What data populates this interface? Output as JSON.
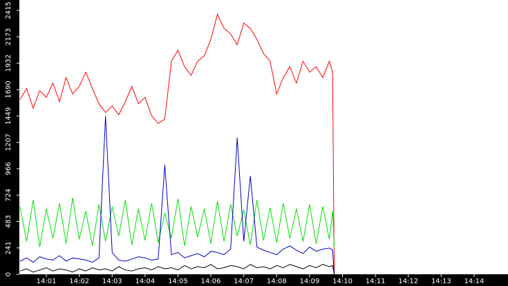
{
  "chart_data": {
    "type": "line",
    "x": [
      0.2,
      0.4,
      0.6,
      0.8,
      1.0,
      1.2,
      1.4,
      1.6,
      1.8,
      2.0,
      2.2,
      2.4,
      2.6,
      2.8,
      3.0,
      3.2,
      3.4,
      3.6,
      3.8,
      4.0,
      4.2,
      4.4,
      4.6,
      4.8,
      5.0,
      5.2,
      5.4,
      5.6,
      5.8,
      6.0,
      6.2,
      6.4,
      6.6,
      6.8,
      7.0,
      7.2,
      7.4,
      7.6,
      7.8,
      8.0,
      8.2,
      8.4,
      8.6,
      8.8,
      9.0,
      9.2,
      9.4,
      9.6,
      9.7,
      9.75
    ],
    "series": [
      {
        "color": "#ff0000",
        "values": [
          1600,
          1700,
          1520,
          1680,
          1620,
          1750,
          1580,
          1800,
          1650,
          1720,
          1850,
          1700,
          1560,
          1480,
          1540,
          1460,
          1580,
          1720,
          1560,
          1620,
          1450,
          1380,
          1420,
          1950,
          2050,
          1900,
          1820,
          1950,
          2000,
          2150,
          2380,
          2250,
          2200,
          2100,
          2300,
          2250,
          2150,
          2020,
          1950,
          1650,
          1800,
          1900,
          1750,
          1950,
          1850,
          1900,
          1800,
          1950,
          1850,
          0
        ]
      },
      {
        "color": "#00e000",
        "values": [
          620,
          300,
          680,
          250,
          600,
          330,
          650,
          280,
          700,
          320,
          580,
          260,
          640,
          300,
          620,
          350,
          680,
          270,
          600,
          310,
          650,
          290,
          560,
          330,
          690,
          260,
          620,
          340,
          600,
          280,
          670,
          300,
          640,
          350,
          590,
          270,
          680,
          310,
          610,
          290,
          650,
          330,
          600,
          300,
          640,
          280,
          620,
          320,
          580,
          250
        ]
      },
      {
        "color": "#0000c0",
        "values": [
          120,
          150,
          110,
          160,
          140,
          130,
          170,
          120,
          150,
          140,
          130,
          110,
          150,
          1450,
          200,
          130,
          120,
          140,
          160,
          150,
          130,
          140,
          1000,
          180,
          200,
          150,
          170,
          190,
          160,
          210,
          200,
          180,
          230,
          1250,
          300,
          900,
          250,
          220,
          200,
          180,
          230,
          260,
          220,
          190,
          250,
          210,
          230,
          240,
          220,
          0
        ]
      },
      {
        "color": "#000000",
        "values": [
          30,
          50,
          20,
          40,
          60,
          30,
          50,
          40,
          20,
          50,
          30,
          60,
          40,
          50,
          30,
          70,
          40,
          30,
          50,
          60,
          40,
          70,
          50,
          60,
          40,
          80,
          50,
          70,
          60,
          90,
          50,
          60,
          80,
          70,
          50,
          90,
          60,
          70,
          50,
          80,
          60,
          90,
          70,
          50,
          80,
          60,
          90,
          70,
          80,
          0
        ]
      }
    ],
    "xlim": [
      0.18,
      15.03
    ],
    "xticks": [
      {
        "value": 1,
        "label": "14:01"
      },
      {
        "value": 2,
        "label": "14:02"
      },
      {
        "value": 3,
        "label": "14:03"
      },
      {
        "value": 4,
        "label": "14:04"
      },
      {
        "value": 5,
        "label": "14:05"
      },
      {
        "value": 6,
        "label": "14:06"
      },
      {
        "value": 7,
        "label": "14:07"
      },
      {
        "value": 8,
        "label": "14:08"
      },
      {
        "value": 9,
        "label": "14:09"
      },
      {
        "value": 10,
        "label": "14:10"
      },
      {
        "value": 11,
        "label": "14:11"
      },
      {
        "value": 12,
        "label": "14:12"
      },
      {
        "value": 13,
        "label": "14:13"
      },
      {
        "value": 14,
        "label": "14:14"
      }
    ],
    "ylim": [
      0,
      2510
    ],
    "yticks": [
      0,
      241,
      483,
      724,
      966,
      1207,
      1449,
      1690,
      1932,
      2173,
      2415
    ],
    "grid": false
  }
}
